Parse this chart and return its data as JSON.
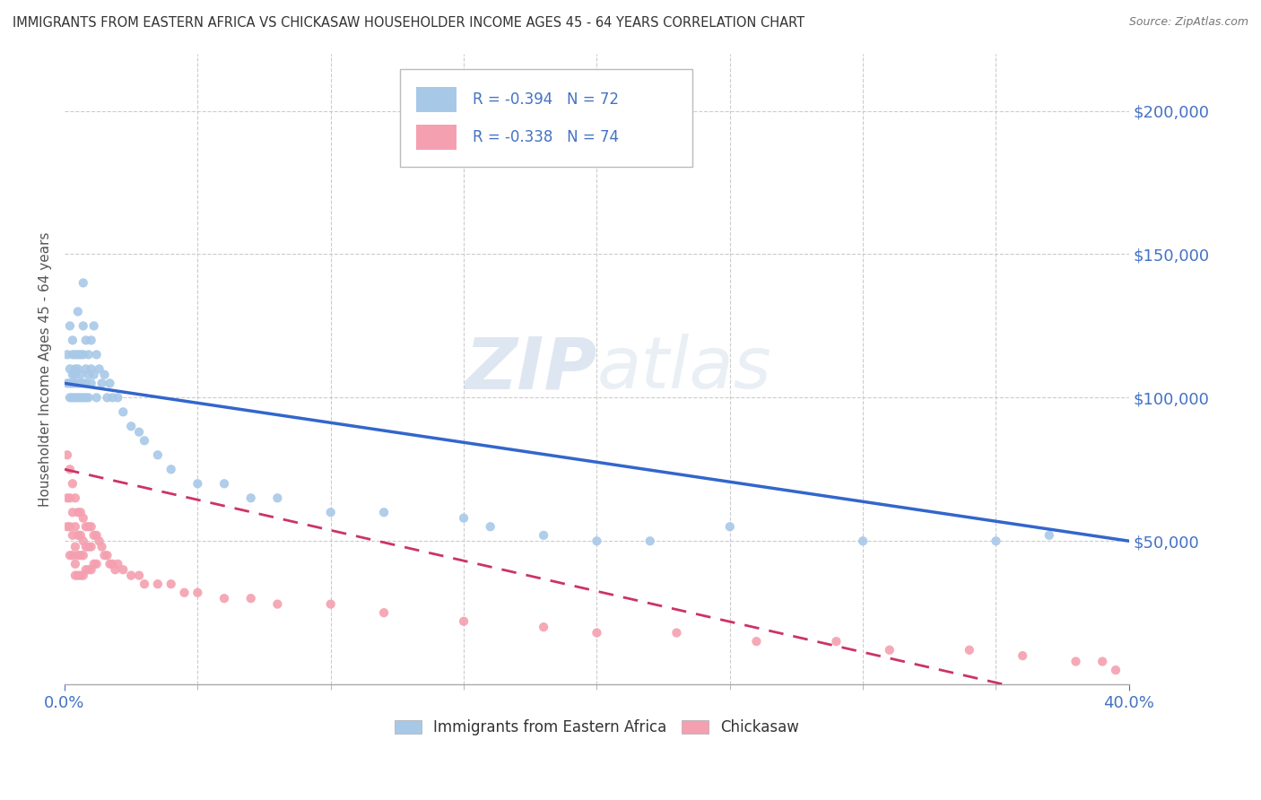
{
  "title": "IMMIGRANTS FROM EASTERN AFRICA VS CHICKASAW HOUSEHOLDER INCOME AGES 45 - 64 YEARS CORRELATION CHART",
  "source": "Source: ZipAtlas.com",
  "ylabel": "Householder Income Ages 45 - 64 years",
  "series1_label": "Immigrants from Eastern Africa",
  "series2_label": "Chickasaw",
  "series1_R": -0.394,
  "series1_N": 72,
  "series2_R": -0.338,
  "series2_N": 74,
  "series1_color": "#a8c8e8",
  "series2_color": "#f4a0b0",
  "series1_line_color": "#3366cc",
  "series2_line_color": "#cc3366",
  "xlim": [
    0.0,
    0.4
  ],
  "ylim": [
    0,
    220000
  ],
  "yticks": [
    0,
    50000,
    100000,
    150000,
    200000
  ],
  "watermark_zip": "ZIP",
  "watermark_atlas": "atlas",
  "background_color": "#ffffff",
  "grid_color": "#cccccc",
  "title_color": "#333333",
  "axis_label_color": "#4472c4",
  "legend_text_color": "#4472c4",
  "series1_scatter_x": [
    0.001,
    0.001,
    0.002,
    0.002,
    0.002,
    0.002,
    0.003,
    0.003,
    0.003,
    0.003,
    0.003,
    0.004,
    0.004,
    0.004,
    0.004,
    0.004,
    0.005,
    0.005,
    0.005,
    0.005,
    0.005,
    0.006,
    0.006,
    0.006,
    0.006,
    0.007,
    0.007,
    0.007,
    0.007,
    0.007,
    0.008,
    0.008,
    0.008,
    0.008,
    0.009,
    0.009,
    0.009,
    0.01,
    0.01,
    0.01,
    0.011,
    0.011,
    0.012,
    0.012,
    0.013,
    0.014,
    0.015,
    0.016,
    0.017,
    0.018,
    0.02,
    0.022,
    0.025,
    0.028,
    0.03,
    0.035,
    0.04,
    0.05,
    0.06,
    0.07,
    0.08,
    0.1,
    0.12,
    0.15,
    0.16,
    0.18,
    0.2,
    0.22,
    0.25,
    0.3,
    0.35,
    0.37
  ],
  "series1_scatter_y": [
    115000,
    105000,
    110000,
    100000,
    125000,
    105000,
    115000,
    105000,
    100000,
    120000,
    108000,
    115000,
    105000,
    100000,
    110000,
    108000,
    130000,
    115000,
    105000,
    100000,
    110000,
    115000,
    108000,
    100000,
    105000,
    140000,
    125000,
    115000,
    105000,
    100000,
    120000,
    110000,
    105000,
    100000,
    115000,
    108000,
    100000,
    120000,
    110000,
    105000,
    125000,
    108000,
    115000,
    100000,
    110000,
    105000,
    108000,
    100000,
    105000,
    100000,
    100000,
    95000,
    90000,
    88000,
    85000,
    80000,
    75000,
    70000,
    70000,
    65000,
    65000,
    60000,
    60000,
    58000,
    55000,
    52000,
    50000,
    50000,
    55000,
    50000,
    50000,
    52000
  ],
  "series2_scatter_x": [
    0.001,
    0.001,
    0.001,
    0.002,
    0.002,
    0.002,
    0.002,
    0.003,
    0.003,
    0.003,
    0.003,
    0.004,
    0.004,
    0.004,
    0.004,
    0.004,
    0.005,
    0.005,
    0.005,
    0.005,
    0.006,
    0.006,
    0.006,
    0.006,
    0.007,
    0.007,
    0.007,
    0.007,
    0.008,
    0.008,
    0.008,
    0.009,
    0.009,
    0.009,
    0.01,
    0.01,
    0.01,
    0.011,
    0.011,
    0.012,
    0.012,
    0.013,
    0.014,
    0.015,
    0.016,
    0.017,
    0.018,
    0.019,
    0.02,
    0.022,
    0.025,
    0.028,
    0.03,
    0.035,
    0.04,
    0.045,
    0.05,
    0.06,
    0.07,
    0.08,
    0.1,
    0.12,
    0.15,
    0.18,
    0.2,
    0.23,
    0.26,
    0.29,
    0.31,
    0.34,
    0.36,
    0.38,
    0.39,
    0.395
  ],
  "series2_scatter_y": [
    80000,
    65000,
    55000,
    75000,
    65000,
    55000,
    45000,
    70000,
    60000,
    52000,
    45000,
    65000,
    55000,
    48000,
    42000,
    38000,
    60000,
    52000,
    45000,
    38000,
    60000,
    52000,
    45000,
    38000,
    58000,
    50000,
    45000,
    38000,
    55000,
    48000,
    40000,
    55000,
    48000,
    40000,
    55000,
    48000,
    40000,
    52000,
    42000,
    52000,
    42000,
    50000,
    48000,
    45000,
    45000,
    42000,
    42000,
    40000,
    42000,
    40000,
    38000,
    38000,
    35000,
    35000,
    35000,
    32000,
    32000,
    30000,
    30000,
    28000,
    28000,
    25000,
    22000,
    20000,
    18000,
    18000,
    15000,
    15000,
    12000,
    12000,
    10000,
    8000,
    8000,
    5000
  ]
}
